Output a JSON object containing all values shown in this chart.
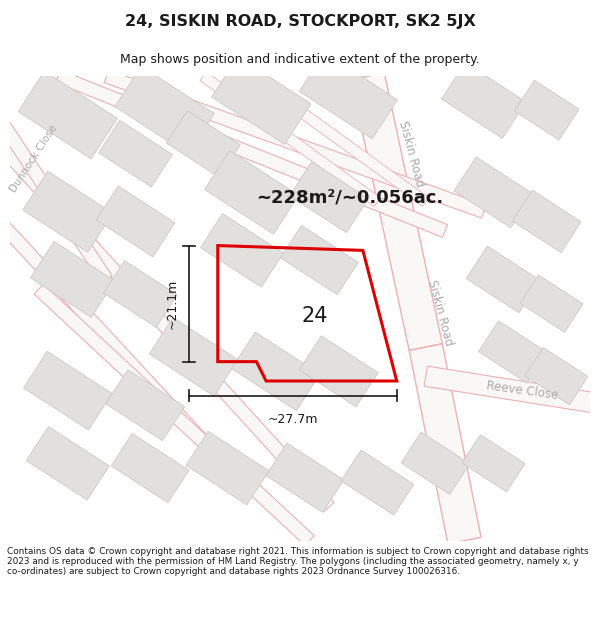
{
  "title": "24, SISKIN ROAD, STOCKPORT, SK2 5JX",
  "subtitle": "Map shows position and indicative extent of the property.",
  "area_label": "~228m²/~0.056ac.",
  "label_24": "24",
  "dim_h": "~27.7m",
  "dim_v": "~21.1m",
  "road_label_siskin_top": "Siskin Road",
  "road_label_siskin_mid": "Siskin Road",
  "road_label_reeve": "Reeve Close",
  "road_label_dunnock": "Dunnock Close",
  "footer": "Contains OS data © Crown copyright and database right 2021. This information is subject to Crown copyright and database rights 2023 and is reproduced with the permission of HM Land Registry. The polygons (including the associated geometry, namely x, y co-ordinates) are subject to Crown copyright and database rights 2023 Ordnance Survey 100026316.",
  "map_bg": "#f5f4f2",
  "title_color": "#1a1a1a",
  "red_color": "#dd0000",
  "road_outline_color": "#f0b0b0",
  "road_fill_color": "#f8f0f0",
  "building_fill": "#e2e0de",
  "building_stroke": "#c8c4c2",
  "dim_color": "#1a1a1a",
  "road_label_color": "#aaaaaa",
  "fig_width": 6.0,
  "fig_height": 6.25
}
